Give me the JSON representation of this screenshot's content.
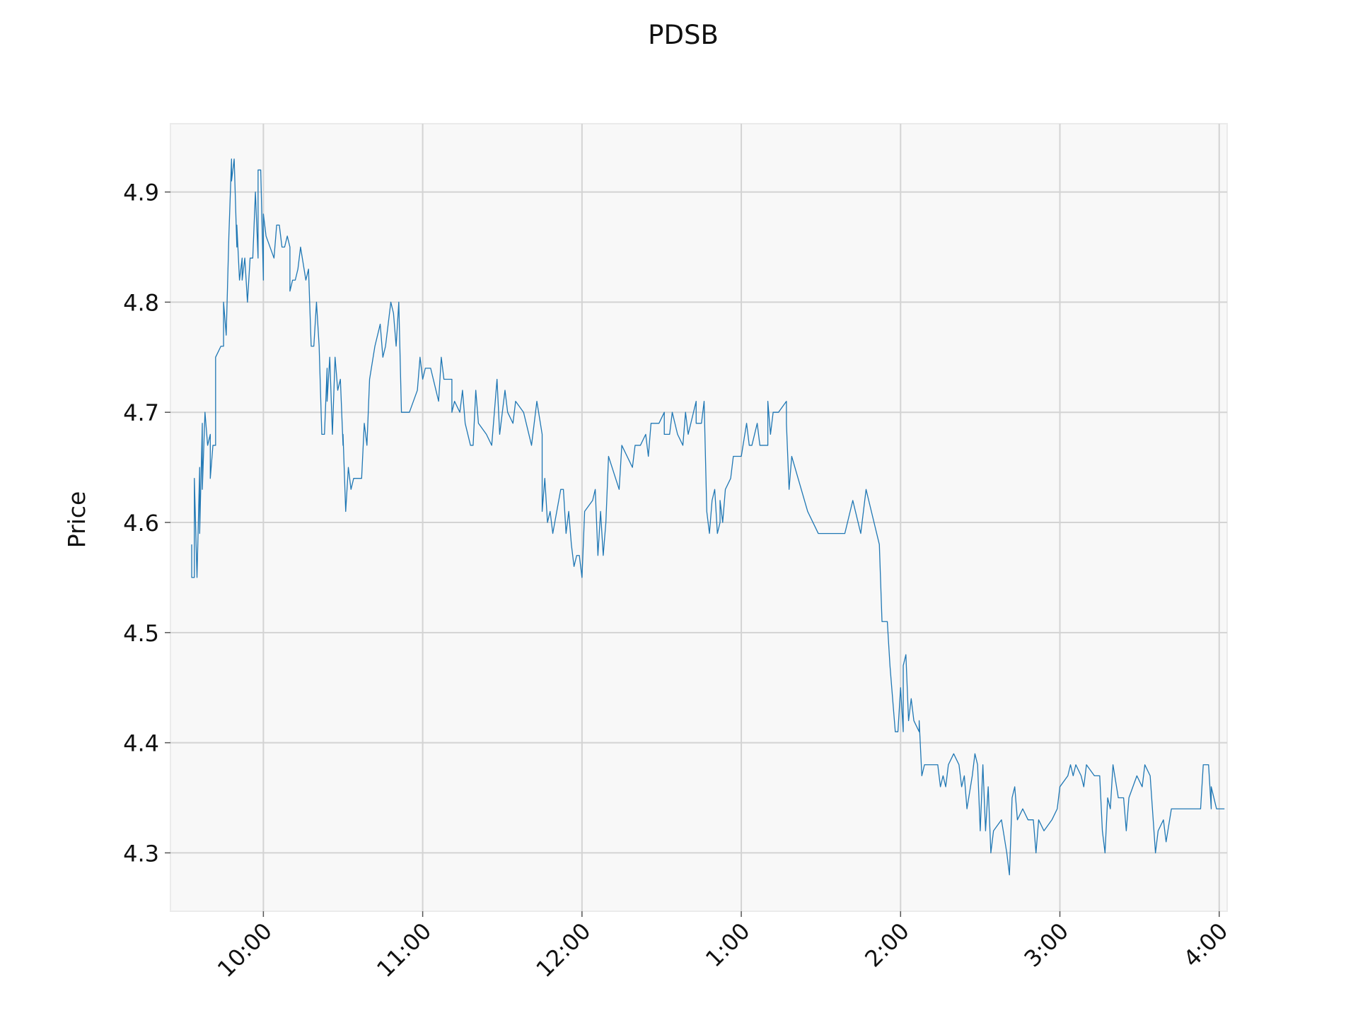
{
  "chart_data": {
    "type": "line",
    "title": "PDSB",
    "y_label": "Price",
    "color": "#1f77b4",
    "grid": true,
    "xlim": [
      565,
      963
    ],
    "ylim": [
      4.247,
      4.962
    ],
    "xticks": [
      {
        "value": 600,
        "label": "10:00"
      },
      {
        "value": 660,
        "label": "11:00"
      },
      {
        "value": 720,
        "label": "12:00"
      },
      {
        "value": 780,
        "label": "1:00"
      },
      {
        "value": 840,
        "label": "2:00"
      },
      {
        "value": 900,
        "label": "3:00"
      },
      {
        "value": 960,
        "label": "4:00"
      }
    ],
    "yticks": [
      4.3,
      4.4,
      4.5,
      4.6,
      4.7,
      4.8,
      4.9
    ],
    "x": [
      573,
      573,
      574,
      574,
      575,
      576,
      576,
      577,
      577,
      578,
      579,
      580,
      580,
      581,
      582,
      582,
      584,
      585,
      585,
      586,
      587,
      588,
      588,
      589,
      590,
      590,
      591,
      592,
      592,
      593,
      594,
      595,
      596,
      597,
      598,
      598,
      599,
      600,
      600,
      601,
      604,
      605,
      606,
      607,
      608,
      609,
      610,
      610,
      611,
      612,
      613,
      614,
      616,
      617,
      618,
      619,
      620,
      621,
      622,
      623,
      624,
      624,
      625,
      626,
      627,
      628,
      629,
      630,
      630,
      631,
      632,
      633,
      634,
      637,
      638,
      639,
      640,
      642,
      644,
      645,
      646,
      648,
      649,
      650,
      651,
      652,
      655,
      658,
      659,
      660,
      661,
      663,
      665,
      666,
      667,
      668,
      671,
      671,
      672,
      674,
      675,
      676,
      678,
      679,
      680,
      681,
      684,
      686,
      688,
      689,
      691,
      692,
      694,
      695,
      698,
      701,
      703,
      705,
      705,
      706,
      707,
      708,
      709,
      712,
      713,
      714,
      715,
      716,
      717,
      718,
      719,
      720,
      721,
      724,
      725,
      726,
      727,
      728,
      729,
      730,
      734,
      735,
      739,
      740,
      742,
      744,
      745,
      746,
      749,
      751,
      751,
      753,
      754,
      756,
      758,
      759,
      760,
      762,
      763,
      763,
      765,
      766,
      767,
      768,
      769,
      770,
      771,
      772,
      772,
      773,
      774,
      776,
      777,
      780,
      782,
      783,
      784,
      786,
      787,
      790,
      790,
      791,
      792,
      794,
      797,
      797,
      798,
      799,
      805,
      809,
      819,
      822,
      823,
      825,
      827,
      828,
      832,
      833,
      835,
      836,
      838,
      839,
      840,
      841,
      841,
      842,
      843,
      844,
      845,
      847,
      847,
      848,
      849,
      854,
      855,
      856,
      857,
      858,
      860,
      862,
      863,
      864,
      865,
      867,
      868,
      869,
      870,
      871,
      872,
      873,
      874,
      875,
      878,
      880,
      881,
      882,
      883,
      884,
      886,
      888,
      890,
      891,
      892,
      894,
      897,
      899,
      900,
      903,
      904,
      905,
      906,
      908,
      909,
      910,
      913,
      915,
      916,
      917,
      918,
      919,
      920,
      922,
      924,
      925,
      926,
      929,
      931,
      932,
      934,
      936,
      937,
      939,
      940,
      942,
      953,
      954,
      956,
      957,
      957,
      959,
      962
    ],
    "values": [
      4.58,
      4.55,
      4.55,
      4.64,
      4.55,
      4.65,
      4.59,
      4.69,
      4.63,
      4.7,
      4.67,
      4.68,
      4.64,
      4.67,
      4.67,
      4.75,
      4.76,
      4.76,
      4.8,
      4.77,
      4.86,
      4.93,
      4.91,
      4.93,
      4.85,
      4.87,
      4.82,
      4.84,
      4.82,
      4.84,
      4.8,
      4.84,
      4.84,
      4.9,
      4.84,
      4.92,
      4.92,
      4.82,
      4.88,
      4.86,
      4.84,
      4.87,
      4.87,
      4.85,
      4.85,
      4.86,
      4.85,
      4.81,
      4.82,
      4.82,
      4.83,
      4.85,
      4.82,
      4.83,
      4.76,
      4.76,
      4.8,
      4.76,
      4.68,
      4.68,
      4.74,
      4.71,
      4.75,
      4.68,
      4.75,
      4.72,
      4.73,
      4.67,
      4.68,
      4.61,
      4.65,
      4.63,
      4.64,
      4.64,
      4.69,
      4.67,
      4.73,
      4.76,
      4.78,
      4.75,
      4.76,
      4.8,
      4.79,
      4.76,
      4.8,
      4.7,
      4.7,
      4.72,
      4.75,
      4.73,
      4.74,
      4.74,
      4.72,
      4.71,
      4.75,
      4.73,
      4.73,
      4.7,
      4.71,
      4.7,
      4.72,
      4.69,
      4.67,
      4.67,
      4.72,
      4.69,
      4.68,
      4.67,
      4.73,
      4.68,
      4.72,
      4.7,
      4.69,
      4.71,
      4.7,
      4.67,
      4.71,
      4.68,
      4.61,
      4.64,
      4.6,
      4.61,
      4.59,
      4.63,
      4.63,
      4.59,
      4.61,
      4.58,
      4.56,
      4.57,
      4.57,
      4.55,
      4.61,
      4.62,
      4.63,
      4.57,
      4.61,
      4.57,
      4.6,
      4.66,
      4.63,
      4.67,
      4.65,
      4.67,
      4.67,
      4.68,
      4.66,
      4.69,
      4.69,
      4.7,
      4.68,
      4.68,
      4.7,
      4.68,
      4.67,
      4.7,
      4.68,
      4.7,
      4.71,
      4.69,
      4.69,
      4.71,
      4.61,
      4.59,
      4.62,
      4.63,
      4.59,
      4.6,
      4.62,
      4.6,
      4.63,
      4.64,
      4.66,
      4.66,
      4.69,
      4.67,
      4.67,
      4.69,
      4.67,
      4.67,
      4.71,
      4.68,
      4.7,
      4.7,
      4.71,
      4.69,
      4.63,
      4.66,
      4.61,
      4.59,
      4.59,
      4.62,
      4.61,
      4.59,
      4.63,
      4.62,
      4.58,
      4.51,
      4.51,
      4.47,
      4.41,
      4.41,
      4.45,
      4.41,
      4.47,
      4.48,
      4.42,
      4.44,
      4.42,
      4.41,
      4.42,
      4.37,
      4.38,
      4.38,
      4.36,
      4.37,
      4.36,
      4.38,
      4.39,
      4.38,
      4.36,
      4.37,
      4.34,
      4.37,
      4.39,
      4.38,
      4.32,
      4.38,
      4.32,
      4.36,
      4.3,
      4.32,
      4.33,
      4.3,
      4.28,
      4.35,
      4.36,
      4.33,
      4.34,
      4.33,
      4.33,
      4.3,
      4.33,
      4.32,
      4.33,
      4.34,
      4.36,
      4.37,
      4.38,
      4.37,
      4.38,
      4.37,
      4.36,
      4.38,
      4.37,
      4.37,
      4.32,
      4.3,
      4.35,
      4.34,
      4.38,
      4.35,
      4.35,
      4.32,
      4.35,
      4.37,
      4.36,
      4.38,
      4.37,
      4.3,
      4.32,
      4.33,
      4.31,
      4.34,
      4.34,
      4.38,
      4.38,
      4.34,
      4.36,
      4.34,
      4.34
    ]
  }
}
